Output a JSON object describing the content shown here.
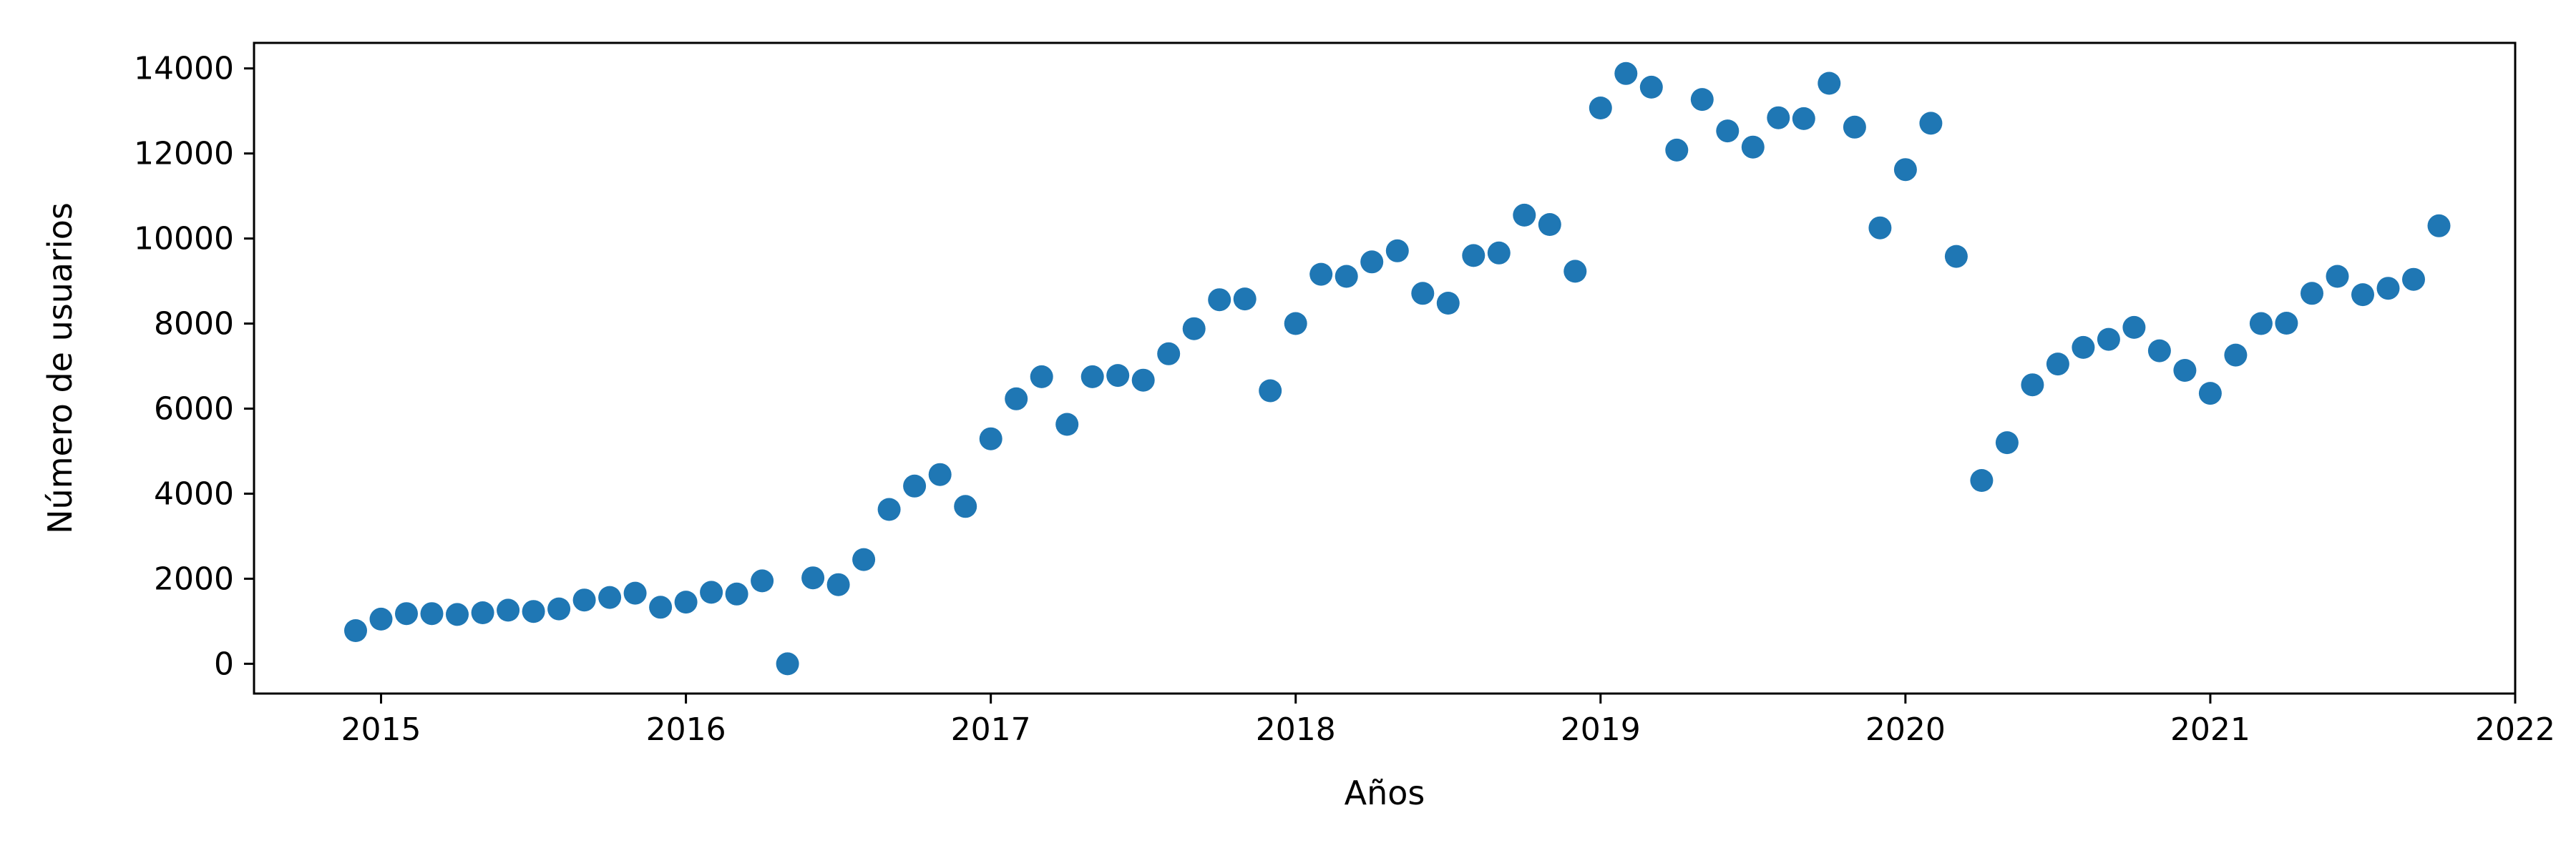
{
  "chart_data": {
    "type": "scatter",
    "xlabel": "Años",
    "ylabel": "Número de usuarios",
    "xlim": [
      "2014-08-01",
      "2022-01-01"
    ],
    "ylim": [
      -700,
      14600
    ],
    "x_ticks": [
      "2015",
      "2016",
      "2017",
      "2018",
      "2019",
      "2020",
      "2021",
      "2022"
    ],
    "y_ticks": [
      "0",
      "2000",
      "4000",
      "6000",
      "8000",
      "10000",
      "12000",
      "14000"
    ],
    "grid": false,
    "marker_color": "#1f77b4",
    "series": [
      {
        "x": [
          "2014-12-01",
          "2015-01-01",
          "2015-02-01",
          "2015-03-01",
          "2015-04-01",
          "2015-05-01",
          "2015-06-01",
          "2015-07-01",
          "2015-08-01",
          "2015-09-01",
          "2015-10-01",
          "2015-11-01",
          "2015-12-01",
          "2016-01-01",
          "2016-02-01",
          "2016-03-01",
          "2016-04-01",
          "2016-05-01",
          "2016-06-01",
          "2016-07-01",
          "2016-08-01",
          "2016-09-01",
          "2016-10-01",
          "2016-11-01",
          "2016-12-01",
          "2017-01-01",
          "2017-02-01",
          "2017-03-01",
          "2017-04-01",
          "2017-05-01",
          "2017-06-01",
          "2017-07-01",
          "2017-08-01",
          "2017-09-01",
          "2017-10-01",
          "2017-11-01",
          "2017-12-01",
          "2018-01-01",
          "2018-02-01",
          "2018-03-01",
          "2018-04-01",
          "2018-05-01",
          "2018-06-01",
          "2018-07-01",
          "2018-08-01",
          "2018-09-01",
          "2018-10-01",
          "2018-11-01",
          "2018-12-01",
          "2019-01-01",
          "2019-02-01",
          "2019-03-01",
          "2019-04-01",
          "2019-05-01",
          "2019-06-01",
          "2019-07-01",
          "2019-08-01",
          "2019-09-01",
          "2019-10-01",
          "2019-11-01",
          "2019-12-01",
          "2020-01-01",
          "2020-02-01",
          "2020-03-01",
          "2020-04-01",
          "2020-05-01",
          "2020-06-01",
          "2020-07-01",
          "2020-08-01",
          "2020-09-01",
          "2020-10-01",
          "2020-11-01",
          "2020-12-01",
          "2021-01-01",
          "2021-02-01",
          "2021-03-01",
          "2021-04-01",
          "2021-05-01",
          "2021-06-01",
          "2021-07-01",
          "2021-08-01",
          "2021-09-01",
          "2021-10-01"
        ],
        "y": [
          780,
          1050,
          1180,
          1180,
          1160,
          1200,
          1260,
          1230,
          1290,
          1500,
          1560,
          1660,
          1330,
          1450,
          1680,
          1640,
          1950,
          0,
          2020,
          1860,
          2450,
          3630,
          4180,
          4450,
          3700,
          5290,
          6230,
          6750,
          5630,
          6750,
          6780,
          6670,
          7290,
          7880,
          8560,
          8580,
          6420,
          8000,
          9160,
          9110,
          9450,
          9710,
          8710,
          8480,
          9600,
          9660,
          10550,
          10330,
          9230,
          13070,
          13880,
          13560,
          12080,
          13270,
          12530,
          12150,
          12840,
          12820,
          13650,
          12620,
          10250,
          11620,
          12710,
          9580,
          4310,
          5200,
          6560,
          7050,
          7440,
          7630,
          7910,
          7360,
          6900,
          6360,
          7260,
          8000,
          8010,
          8710,
          9110,
          8680,
          8830,
          9040,
          10300
        ]
      }
    ]
  }
}
